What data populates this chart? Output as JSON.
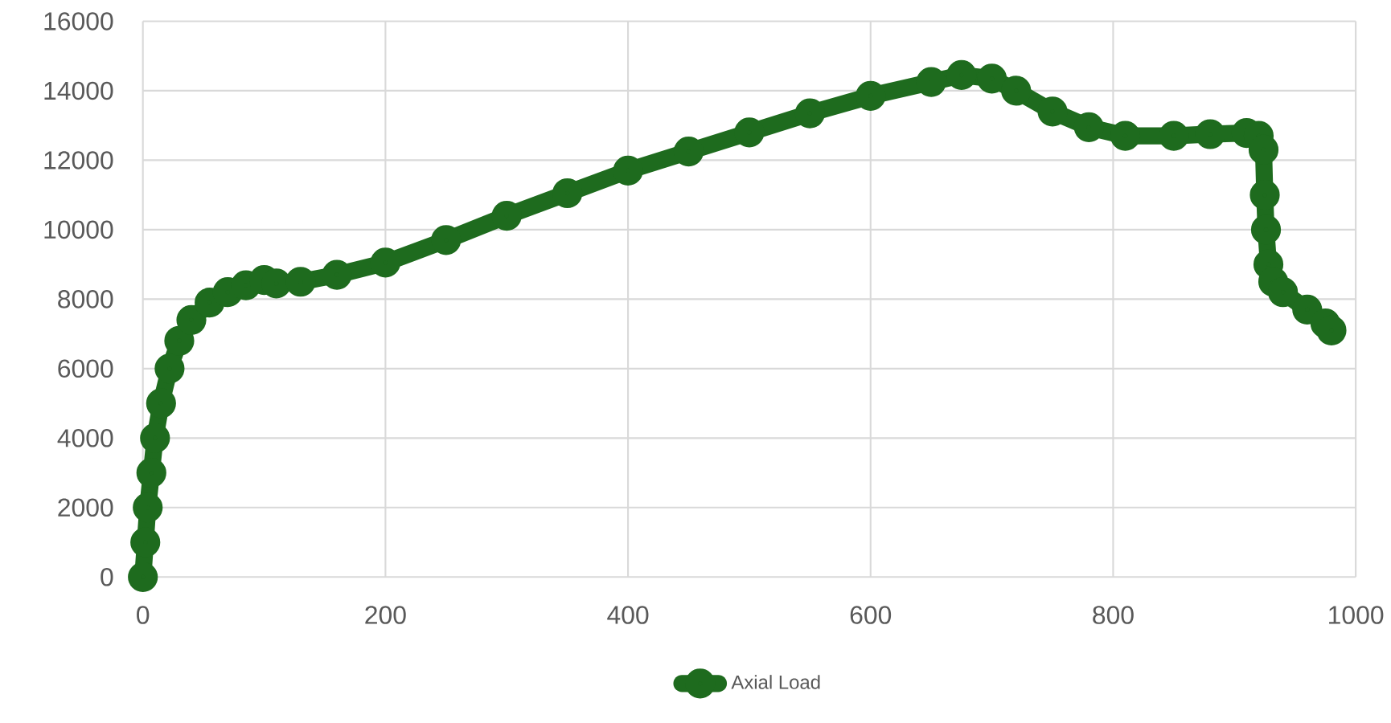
{
  "chart_data": {
    "type": "line",
    "x": [
      0,
      2,
      4,
      7,
      10,
      15,
      22,
      30,
      40,
      55,
      70,
      85,
      100,
      110,
      130,
      160,
      200,
      250,
      300,
      350,
      400,
      450,
      500,
      550,
      600,
      650,
      675,
      700,
      720,
      750,
      780,
      810,
      850,
      880,
      910,
      920,
      924,
      925,
      926,
      928,
      932,
      940,
      960,
      975,
      980
    ],
    "series": [
      {
        "name": "Axial Load",
        "color": "#1e6b1e",
        "values": [
          0,
          1000,
          2000,
          3000,
          4000,
          5000,
          6000,
          6800,
          7400,
          7900,
          8200,
          8400,
          8550,
          8450,
          8500,
          8700,
          9050,
          9700,
          10400,
          11050,
          11700,
          12250,
          12800,
          13350,
          13850,
          14250,
          14450,
          14350,
          14000,
          13400,
          12950,
          12700,
          12700,
          12750,
          12780,
          12700,
          12300,
          11000,
          10000,
          9000,
          8500,
          8200,
          7700,
          7300,
          7100
        ]
      }
    ],
    "xlim": [
      0,
      1000
    ],
    "ylim": [
      0,
      16000
    ],
    "xticks": [
      0,
      200,
      400,
      600,
      800,
      1000
    ],
    "yticks": [
      0,
      2000,
      4000,
      6000,
      8000,
      10000,
      12000,
      14000,
      16000
    ],
    "grid": true,
    "legend": "bottom",
    "marker": "circle",
    "line_style": "solid"
  }
}
